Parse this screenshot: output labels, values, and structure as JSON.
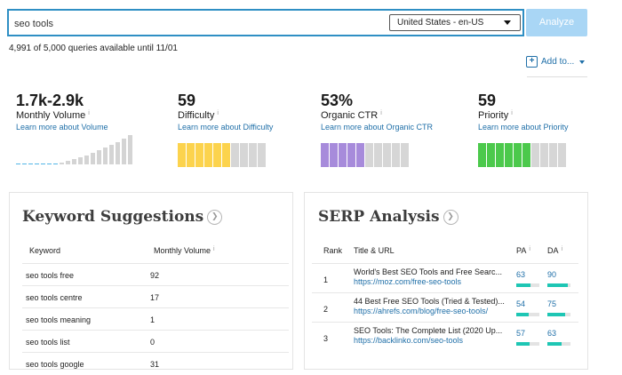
{
  "search": {
    "query": "seo tools",
    "locale": "United States - en-US",
    "analyze_label": "Analyze"
  },
  "quota_text": "4,991 of 5,000 queries available until 11/01",
  "add_to_label": "Add to...",
  "metrics": {
    "volume": {
      "value": "1.7k-2.9k",
      "label": "Monthly Volume",
      "link": "Learn more about Volume"
    },
    "difficulty": {
      "value": "59",
      "label": "Difficulty",
      "link": "Learn more about Difficulty",
      "filled_segments": 6,
      "total_segments": 10,
      "color": "#fcd34d"
    },
    "ctr": {
      "value": "53%",
      "label": "Organic CTR",
      "link": "Learn more about Organic CTR",
      "filled_segments": 5,
      "total_segments": 10,
      "color": "#a78bdb"
    },
    "priority": {
      "value": "59",
      "label": "Priority",
      "link": "Learn more about Priority",
      "filled_segments": 6,
      "total_segments": 10,
      "color": "#4cc94c"
    }
  },
  "keyword_suggestions": {
    "title": "Keyword Suggestions",
    "col_keyword": "Keyword",
    "col_volume": "Monthly Volume",
    "rows": [
      {
        "keyword": "seo tools free",
        "volume": "92"
      },
      {
        "keyword": "seo tools centre",
        "volume": "17"
      },
      {
        "keyword": "seo tools meaning",
        "volume": "1"
      },
      {
        "keyword": "seo tools list",
        "volume": "0"
      },
      {
        "keyword": "seo tools google",
        "volume": "31"
      }
    ]
  },
  "serp": {
    "title": "SERP Analysis",
    "col_rank": "Rank",
    "col_title": "Title & URL",
    "col_pa": "PA",
    "col_da": "DA",
    "rows": [
      {
        "rank": "1",
        "title": "World's Best SEO Tools and Free Searc...",
        "url": "https://moz.com/free-seo-tools",
        "pa": "63",
        "da": "90"
      },
      {
        "rank": "2",
        "title": "44 Best Free SEO Tools (Tried & Tested)...",
        "url": "https://ahrefs.com/blog/free-seo-tools/",
        "pa": "54",
        "da": "75"
      },
      {
        "rank": "3",
        "title": "SEO Tools: The Complete List (2020 Up...",
        "url": "https://backlinko.com/seo-tools",
        "pa": "57",
        "da": "63"
      }
    ]
  },
  "colors": {
    "accent": "#2f8fc4",
    "link": "#1f6fa8",
    "teal": "#1ec6b4"
  },
  "icons": {
    "info": "info-icon",
    "plus": "plus-icon",
    "arrow": "circle-arrow-icon"
  }
}
